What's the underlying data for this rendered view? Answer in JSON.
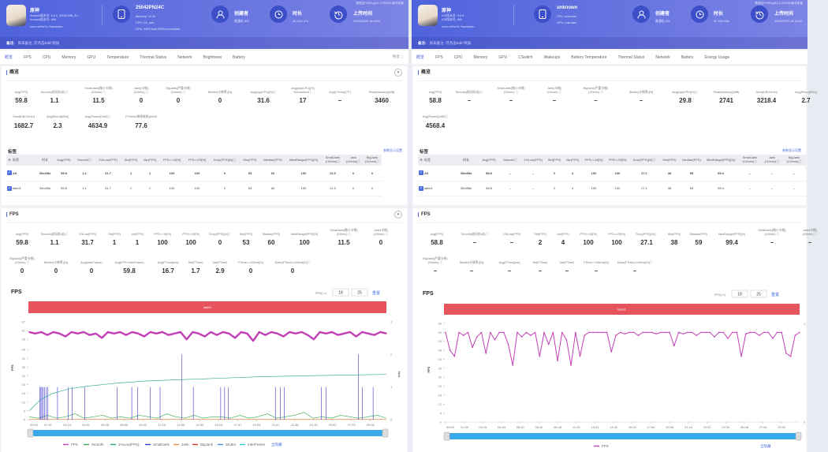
{
  "colors": {
    "header_start": "#4f63dc",
    "header_end": "#7c84e4",
    "accent": "#4a6ee0",
    "label_bar": "#e8545e",
    "fps": "#c23fb5",
    "smooth": "#3aa64a",
    "low1": "#1fa08a",
    "smalljank": "#3a3acb",
    "jank": "#f08a3c",
    "bigjank": "#d33",
    "stutter": "#3b8fe0",
    "interframe": "#35c8d0",
    "slider": "#3aa9ec"
  },
  "panels": [
    {
      "header": {
        "app_name": "原神",
        "os_line1": "Android版本名: 5.6.0_33040398_33...",
        "os_line2": "Android版本号: 995",
        "package": "com.miHoYo.Yuanshen",
        "device": "25042PN24C",
        "device_lines": [
          "Memory: 12.00",
          "CPU: D1_ado",
          "GPU: ARM Mali-G925-Immortalis"
        ],
        "creator_title": "创建者",
        "creator": "普通机 000",
        "duration_title": "时长",
        "duration": "0h 30m 27s",
        "upload_title": "上传时间",
        "upload": "16/05/2025 16:08:51",
        "notice": "数据由PerfDog(11.1.250206)版本收集",
        "note_label": "备注:",
        "note": "尚未备注, 可点击Edit*添加"
      },
      "tabs": [
        "概览",
        "FPS",
        "CPU",
        "Memory",
        "GPU",
        "Temperature",
        "Thermal Status",
        "Network",
        "Brightness",
        "Battery"
      ],
      "export_label": "导出",
      "overview": {
        "title": "概览",
        "row1": [
          {
            "label": "Avg(FPS)",
            "value": "59.8"
          },
          {
            "label": "Smooth(帧间抖动)ⓘ",
            "value": "1.1"
          },
          {
            "label": "SmallJank(微小卡顿)\n(/10min) ⓘ",
            "value": "11.5"
          },
          {
            "label": "Jank(卡顿)\n(/10min) ⓘ",
            "value": "0"
          },
          {
            "label": "BigJank(严重卡顿)\n(/10min) ⓘ",
            "value": "0"
          },
          {
            "label": "Stutter(卡顿率)[%]",
            "value": "0"
          },
          {
            "label": "Avg(AppCPU)[%]ⓘ",
            "value": "31.6"
          },
          {
            "label": "Avg(AppCPU)[%]\nNormalizedⓘ",
            "value": "17"
          },
          {
            "label": "Avg(CTemp)[℃]",
            "value": "–"
          },
          {
            "label": "Peak(Memory)[MB]",
            "value": "3460"
          }
        ],
        "row2": [
          {
            "label": "Send[KB/10min]",
            "value": "1682.7"
          },
          {
            "label": "Avg(Recv)[KB/s]",
            "value": "2.3"
          },
          {
            "label": "Avg(Power)[mW]ⓘ",
            "value": "4634.9"
          },
          {
            "label": "FPower(每帧耗电)[mW]",
            "value": "77.6"
          }
        ]
      },
      "labels_table": {
        "title": "标签",
        "link": "参数显示设置",
        "columns": [
          "标签",
          "时长",
          "Avg(FPS)",
          "Smoothⓘ",
          "1%Low(FPS)",
          "Std(FPS)",
          "Var(FPS)",
          "FPS>=18[%]",
          "FPS>=25[%]",
          "Drop(FPS)[/h]ⓘ",
          "Min(FPS)",
          "Median(FPS)",
          "MedRange(FPS)[%]",
          "SmallJank\n(/10min)ⓘ",
          "Jank\n(/10min)ⓘ",
          "BigJank\n(/10min)ⓘ"
        ],
        "rows": [
          [
            "All",
            "30m28s",
            "59.8",
            "1.1",
            "31.7",
            "1",
            "1",
            "100",
            "100",
            "0",
            "53",
            "60",
            "100",
            "11.5",
            "0",
            "0"
          ],
          [
            "label1",
            "30m28s",
            "59.8",
            "1.1",
            "31.7",
            "1",
            "1",
            "100",
            "100",
            "0",
            "53",
            "60",
            "100",
            "11.5",
            "0",
            "0"
          ]
        ]
      },
      "fps": {
        "title": "FPS",
        "row1": [
          {
            "label": "Avg(FPS)",
            "value": "59.8"
          },
          {
            "label": "Smooth(帧间抖动)ⓘ",
            "value": "1.1"
          },
          {
            "label": "1%Low(FPS)",
            "value": "31.7"
          },
          {
            "label": "Std(FPS)",
            "value": "1"
          },
          {
            "label": "Var(FPS)",
            "value": "1"
          },
          {
            "label": "FPS>=18[%]",
            "value": "100"
          },
          {
            "label": "FPS>=25[%]",
            "value": "100"
          },
          {
            "label": "Drop(FPS)[/h]ⓘ",
            "value": "0"
          },
          {
            "label": "Min(FPS)",
            "value": "53"
          },
          {
            "label": "Median(FPS)",
            "value": "60"
          },
          {
            "label": "MedRange(FPS)[%]",
            "value": "100"
          },
          {
            "label": "SmallJank(微小卡顿)\n(/10min) ⓘ",
            "value": "11.5"
          },
          {
            "label": "Jank(卡顿)\n(/10min) ⓘ",
            "value": "0"
          }
        ],
        "row2": [
          {
            "label": "BigJank(严重卡顿)\n(/10min) ⓘ",
            "value": "0"
          },
          {
            "label": "Stutter(卡顿率)[%]",
            "value": "0"
          },
          {
            "label": "Avg(InterFrame)",
            "value": "0"
          },
          {
            "label": "Avg(FPS+InterFrame)",
            "value": "59.8"
          },
          {
            "label": "Avg(FTime)[ms]",
            "value": "16.7"
          },
          {
            "label": "Std(FTime)",
            "value": "1.7"
          },
          {
            "label": "Var(FTime)",
            "value": "2.9"
          },
          {
            "label": "FTime>=100ms[%]",
            "value": "0"
          },
          {
            "label": "Delta(FTime)>100ms[/h]ⓘ",
            "value": "0"
          }
        ]
      },
      "chart_data": {
        "type": "line",
        "title": "FPS",
        "threshold_label": "FPS(>=)",
        "thresholds": [
          "18",
          "25"
        ],
        "reset_label": "重置",
        "label_bar": "label1",
        "ylabel": "FPS",
        "y2label": "Jank",
        "yticks": [
          "0",
          "6",
          "12",
          "18",
          "24",
          "30",
          "36",
          "42",
          "48",
          "55",
          "61",
          "67"
        ],
        "ylim": [
          0,
          67
        ],
        "y2ticks": [
          "0",
          "1",
          "2",
          "3"
        ],
        "y2lim": [
          0,
          3
        ],
        "xticks": [
          "00:00",
          "01:37",
          "03:14",
          "04:51",
          "06:28",
          "08:05",
          "09:42",
          "11:19",
          "12:56",
          "14:33",
          "16:10",
          "17:47",
          "19:24",
          "21:01",
          "22:38",
          "24:15",
          "25:52",
          "27:29",
          "29:06"
        ],
        "xlim": [
          "00:00",
          "30:28"
        ],
        "fps": [
          60,
          59,
          60,
          58,
          60,
          59,
          57,
          60,
          59,
          60,
          58,
          59,
          56,
          60,
          59,
          60,
          58,
          60,
          59,
          57,
          60,
          59,
          60,
          58,
          59,
          60,
          55,
          60,
          59,
          57,
          60,
          58,
          60,
          59,
          56,
          60,
          59,
          54,
          60,
          58,
          60,
          59,
          57,
          60,
          59,
          60,
          58,
          55,
          60,
          59,
          60,
          58,
          59,
          60,
          57,
          60,
          59,
          58,
          60,
          59
        ],
        "smooth": [
          2,
          1,
          3,
          1,
          2,
          4,
          1,
          2,
          3,
          1,
          2,
          1,
          3,
          2,
          1,
          4,
          2,
          1,
          3,
          1,
          2,
          2,
          1,
          3,
          1,
          2,
          4,
          1,
          2,
          3,
          5,
          1,
          2,
          1,
          3,
          2,
          1,
          2,
          3,
          1
        ],
        "low1": [
          [
            "00:00",
            6
          ],
          [
            "01:00",
            14
          ],
          [
            "02:00",
            18
          ],
          [
            "03:20",
            21
          ],
          [
            "05:00",
            23
          ],
          [
            "07:30",
            25
          ],
          [
            "10:00",
            26.5
          ],
          [
            "13:20",
            27.5
          ],
          [
            "16:40",
            28.5
          ],
          [
            "20:00",
            29.5
          ],
          [
            "23:20",
            30
          ],
          [
            "26:40",
            30.5
          ],
          [
            "30:28",
            31
          ]
        ],
        "smalljank": [
          [
            "00:55",
            1
          ],
          [
            "01:00",
            1
          ],
          [
            "01:05",
            1
          ],
          [
            "01:12",
            1
          ],
          [
            "01:18",
            1
          ],
          [
            "01:28",
            1
          ],
          [
            "01:35",
            1
          ],
          [
            "02:25",
            1
          ],
          [
            "03:20",
            1
          ],
          [
            "03:40",
            1
          ],
          [
            "04:45",
            1
          ],
          [
            "07:30",
            1
          ],
          [
            "08:45",
            1
          ],
          [
            "09:15",
            1
          ],
          [
            "10:20",
            1
          ],
          [
            "11:10",
            1
          ],
          [
            "13:00",
            2
          ],
          [
            "14:00",
            1
          ],
          [
            "16:20",
            1
          ],
          [
            "16:40",
            1
          ],
          [
            "17:00",
            1
          ],
          [
            "21:00",
            1
          ],
          [
            "21:25",
            1
          ],
          [
            "21:45",
            1
          ],
          [
            "24:55",
            1
          ],
          [
            "25:20",
            1
          ],
          [
            "28:05",
            2
          ],
          [
            "28:25",
            1
          ],
          [
            "29:20",
            1
          ]
        ],
        "legend": [
          "FPS",
          "Smooth",
          "1%Low(FPS)",
          "SmallJank",
          "Jank",
          "BigJank",
          "Stutter",
          "InterFrame"
        ],
        "hide_all": "全隐藏"
      }
    },
    {
      "header": {
        "app_name": "原神",
        "os_line1": "iOS版本名: 5.6.0",
        "os_line2": "iOS版本号: 990",
        "package": "com.miHoYo.Yuanshen",
        "device": "unknown",
        "device_lines": [
          "CPU: unknown",
          "GPU: unknown"
        ],
        "creator_title": "创建者",
        "creator": "普通机 000",
        "duration_title": "时长",
        "duration": "0h 30m 58s",
        "upload_title": "上传时间",
        "upload": "16/05/2025 16:18:03",
        "notice": "数据由PerfDog(11.1.250206)版本收集",
        "note_label": "备注:",
        "note": "尚未备注, 可点击Edit*添加"
      },
      "tabs": [
        "概览",
        "FPS",
        "CPU",
        "Memory",
        "GPU",
        "CSwitch",
        "Wakeups",
        "Battery Temperature",
        "Thermal Status",
        "Network",
        "Battery",
        "Energy Usage"
      ],
      "export_label": "",
      "overview": {
        "title": "概览",
        "row1": [
          {
            "label": "Avg(FPS)",
            "value": "58.8"
          },
          {
            "label": "Smooth(帧间抖动)ⓘ",
            "value": "–"
          },
          {
            "label": "SmallJank(微小卡顿)\n(/10min) ⓘ",
            "value": "–"
          },
          {
            "label": "Jank(卡顿)\n(/10min) ⓘ",
            "value": "–"
          },
          {
            "label": "BigJank(严重卡顿)\n(/10min) ⓘ",
            "value": "–"
          },
          {
            "label": "Stutter(卡顿率)[%]",
            "value": "–"
          },
          {
            "label": "Avg(AppCPU)[%]ⓘ",
            "value": "29.8"
          },
          {
            "label": "Peak(Memory)[MB]",
            "value": "2741"
          },
          {
            "label": "Send[KB/10min]",
            "value": "3218.4"
          },
          {
            "label": "Avg(Recv)[KB/s]",
            "value": "2.7"
          }
        ],
        "row2": [
          {
            "label": "Avg(Power)[mW]ⓘ",
            "value": "4568.4"
          }
        ]
      },
      "labels_table": {
        "title": "标签",
        "link": "参数显示设置",
        "columns": [
          "标签",
          "时长",
          "Avg(FPS)",
          "Smoothⓘ",
          "1%Low(FPS)",
          "Std(FPS)",
          "Var(FPS)",
          "FPS>=18[%]",
          "FPS>=25[%]",
          "Drop(FPS)[/h]ⓘ",
          "Min(FPS)",
          "Median(FPS)",
          "MedRange(FPS)[%]",
          "SmallJank\n(/10min)ⓘ",
          "Jank\n(/10min)ⓘ",
          "BigJank\n(/10min)ⓘ"
        ],
        "rows": [
          [
            "All",
            "30m58s",
            "58.8",
            "–",
            "–",
            "2",
            "4",
            "100",
            "100",
            "27.1",
            "38",
            "59",
            "99.4",
            "–",
            "–",
            "–"
          ],
          [
            "label1",
            "30m58s",
            "58.8",
            "–",
            "–",
            "2",
            "4",
            "100",
            "100",
            "27.1",
            "38",
            "59",
            "99.4",
            "–",
            "–",
            "–"
          ]
        ]
      },
      "fps": {
        "title": "FPS",
        "row1": [
          {
            "label": "Avg(FPS)",
            "value": "58.8"
          },
          {
            "label": "Smooth(帧间抖动)ⓘ",
            "value": "–"
          },
          {
            "label": "1%Low(FPS)",
            "value": "–"
          },
          {
            "label": "Std(FPS)",
            "value": "2"
          },
          {
            "label": "Var(FPS)",
            "value": "4"
          },
          {
            "label": "FPS>=18[%]",
            "value": "100"
          },
          {
            "label": "FPS>=25[%]",
            "value": "100"
          },
          {
            "label": "Drop(FPS)[/h]ⓘ",
            "value": "27.1"
          },
          {
            "label": "Min(FPS)",
            "value": "38"
          },
          {
            "label": "Median(FPS)",
            "value": "59"
          },
          {
            "label": "MedRange(FPS)[%]",
            "value": "99.4"
          },
          {
            "label": "SmallJank(微小卡顿)\n(/10min) ⓘ",
            "value": "–"
          },
          {
            "label": "Jank(卡顿)\n(/10min) ⓘ",
            "value": "–"
          }
        ],
        "row2": [
          {
            "label": "BigJank(严重卡顿)\n(/10min) ⓘ",
            "value": "–"
          },
          {
            "label": "Stutter(卡顿率)[%]",
            "value": "–"
          },
          {
            "label": "Avg(FTime)[ms]",
            "value": "–"
          },
          {
            "label": "Std(FTime)",
            "value": "–"
          },
          {
            "label": "Var(FTime)",
            "value": "–"
          },
          {
            "label": "FTime>=100ms[%]",
            "value": "–"
          },
          {
            "label": "Delta(FTime)>100ms[/h]ⓘ",
            "value": "–"
          }
        ]
      },
      "chart_data": {
        "type": "line",
        "title": "FPS",
        "threshold_label": "FPS(>=)",
        "thresholds": [
          "18",
          "25"
        ],
        "reset_label": "重置",
        "label_bar": "label1",
        "ylabel": "FPS",
        "y2label": "",
        "yticks": [
          "0",
          "6",
          "12",
          "18",
          "24",
          "30",
          "36",
          "42",
          "48",
          "54",
          "60",
          "66"
        ],
        "ylim": [
          0,
          66
        ],
        "y2ticks": [
          "0",
          "1"
        ],
        "y2lim": [
          0,
          1
        ],
        "xticks": [
          "00:00",
          "01:38",
          "03:16",
          "04:54",
          "06:32",
          "08:10",
          "09:48",
          "11:26",
          "13:04",
          "14:42",
          "16:20",
          "17:58",
          "19:36",
          "21:14",
          "22:52",
          "24:30",
          "26:08",
          "27:46",
          "29:24"
        ],
        "xlim": [
          "00:00",
          "30:58"
        ],
        "fps": [
          60,
          48,
          44,
          60,
          58,
          60,
          50,
          57,
          60,
          46,
          60,
          55,
          60,
          60,
          52,
          38,
          60,
          57,
          60,
          58,
          60,
          44,
          60,
          52,
          60,
          41,
          60,
          55,
          38,
          60,
          44,
          58,
          60,
          60,
          60,
          60,
          60,
          47,
          58,
          60,
          59,
          60,
          60,
          58,
          60,
          60,
          60,
          59,
          60,
          60,
          60,
          51,
          60,
          59,
          60,
          60,
          58,
          60,
          60,
          60,
          57,
          60,
          60,
          56,
          60,
          60,
          44,
          59,
          60,
          60,
          58,
          60,
          60,
          56,
          60,
          60,
          46,
          44,
          58,
          60
        ],
        "smooth": [],
        "low1": [],
        "smalljank": [],
        "legend": [
          "FPS"
        ],
        "hide_all": "全隐藏"
      }
    }
  ]
}
